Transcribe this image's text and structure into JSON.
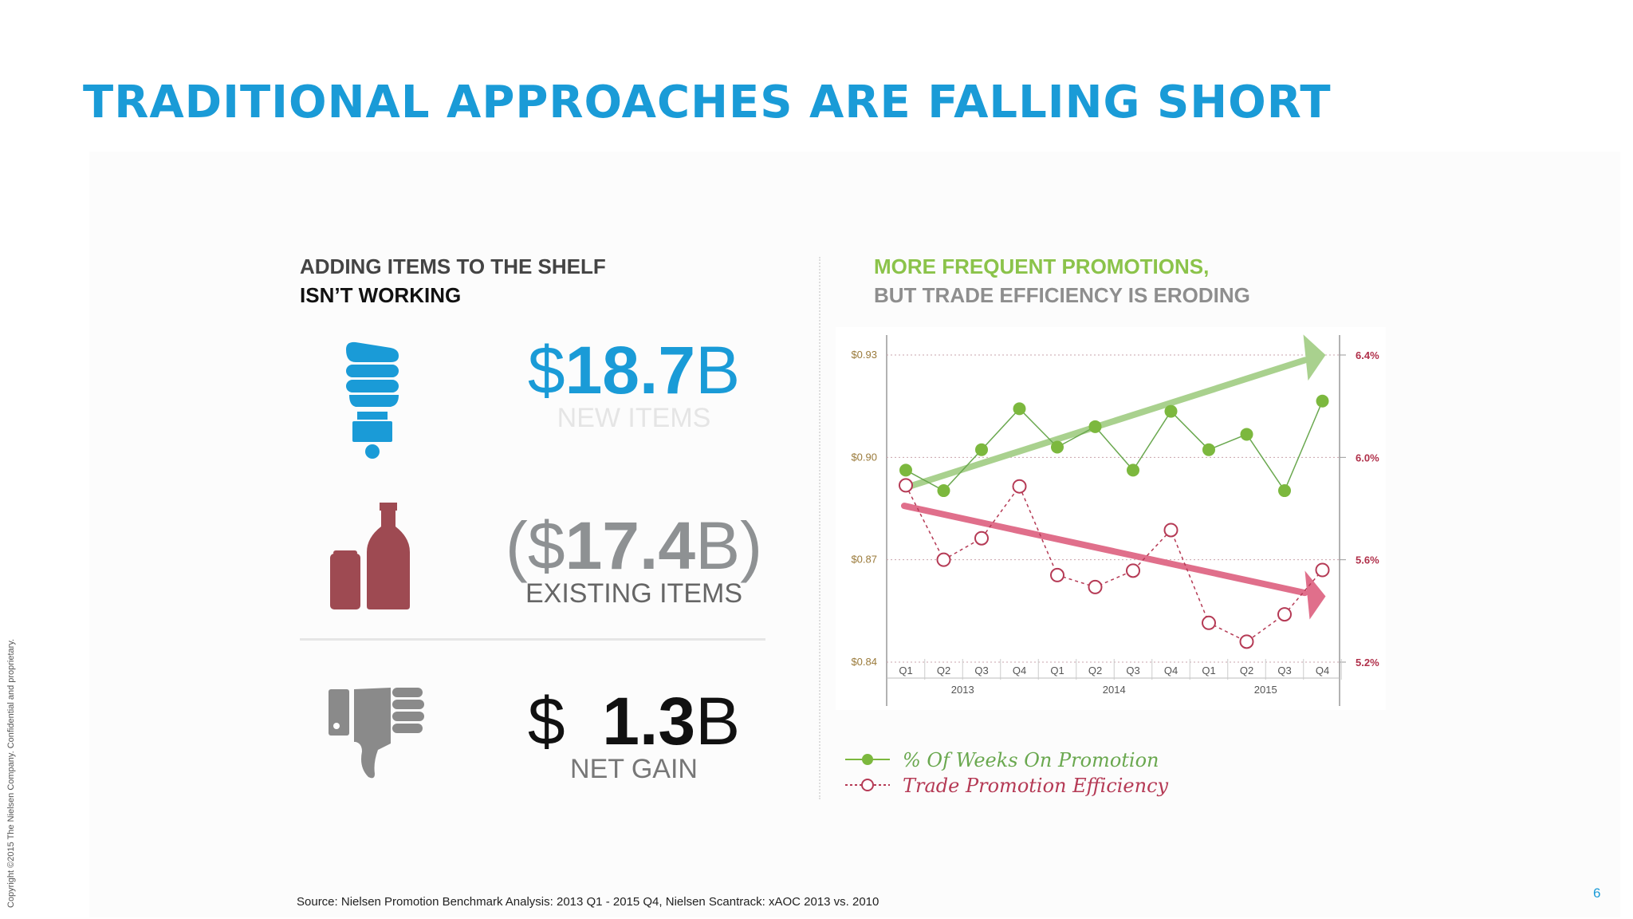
{
  "slide": {
    "title": "TRADITIONAL APPROACHES ARE FALLING SHORT",
    "copyright": "Copyright ©2015 The Nielsen Company. Confidential and proprietary.",
    "source": "Source: Nielsen Promotion Benchmark Analysis:  2013 Q1 - 2015 Q4, Nielsen Scantrack: xAOC 2013 vs. 2010",
    "page_number": "6"
  },
  "left": {
    "heading_line1": "ADDING ITEMS TO THE SHELF",
    "heading_line2": "ISN’T WORKING",
    "metrics": [
      {
        "prefix": "$",
        "number": "18.7",
        "suffix": "B",
        "label": "NEW ITEMS",
        "icon": "light-bulb-icon",
        "color": "#1a9bd7"
      },
      {
        "prefix": "($",
        "number": "17.4",
        "suffix": "B)",
        "label": "EXISTING ITEMS",
        "icon": "can-and-bottle-icon",
        "color": "#9e4a52"
      },
      {
        "prefix": "$  ",
        "number": "1.3",
        "suffix": "B",
        "label": "NET GAIN",
        "icon": "thumbs-down-icon",
        "color": "#8a8a8a"
      }
    ]
  },
  "right": {
    "heading_line1": "MORE FREQUENT PROMOTIONS,",
    "heading_line2": "BUT TRADE EFFICIENCY IS ERODING"
  },
  "chart_data": {
    "type": "line",
    "categories": [
      "Q1",
      "Q2",
      "Q3",
      "Q4",
      "Q1",
      "Q2",
      "Q3",
      "Q4",
      "Q1",
      "Q2",
      "Q3",
      "Q4"
    ],
    "year_labels": [
      "2013",
      "2014",
      "2015"
    ],
    "left_axis": {
      "ticks": [
        "$0.93",
        "$0.90",
        "$0.87",
        "$0.84"
      ],
      "range": [
        0.84,
        0.93
      ]
    },
    "right_axis": {
      "ticks": [
        "6.4%",
        "6.0%",
        "5.6%",
        "5.2%"
      ],
      "range": [
        5.2,
        6.4
      ]
    },
    "series": [
      {
        "name": "% Of Weeks On Promotion",
        "axis": "right",
        "color": "#7cb83e",
        "marker": "filled",
        "values": [
          5.95,
          5.87,
          6.03,
          6.19,
          6.04,
          6.12,
          5.95,
          6.18,
          6.03,
          6.09,
          5.87,
          6.22
        ]
      },
      {
        "name": "Trade Promotion Efficiency",
        "axis": "left",
        "color": "#b53a55",
        "marker": "hollow",
        "values": [
          0.8918,
          0.87,
          0.8763,
          0.8915,
          0.8655,
          0.862,
          0.8668,
          0.8787,
          0.8515,
          0.846,
          0.854,
          0.867
        ]
      }
    ],
    "trend_arrows": [
      {
        "series": "% Of Weeks On Promotion",
        "direction": "up",
        "color": "#a9d18e"
      },
      {
        "series": "Trade Promotion Efficiency",
        "direction": "down",
        "color": "#e06f8b"
      }
    ],
    "grid": true,
    "legend": "bottom-left"
  }
}
